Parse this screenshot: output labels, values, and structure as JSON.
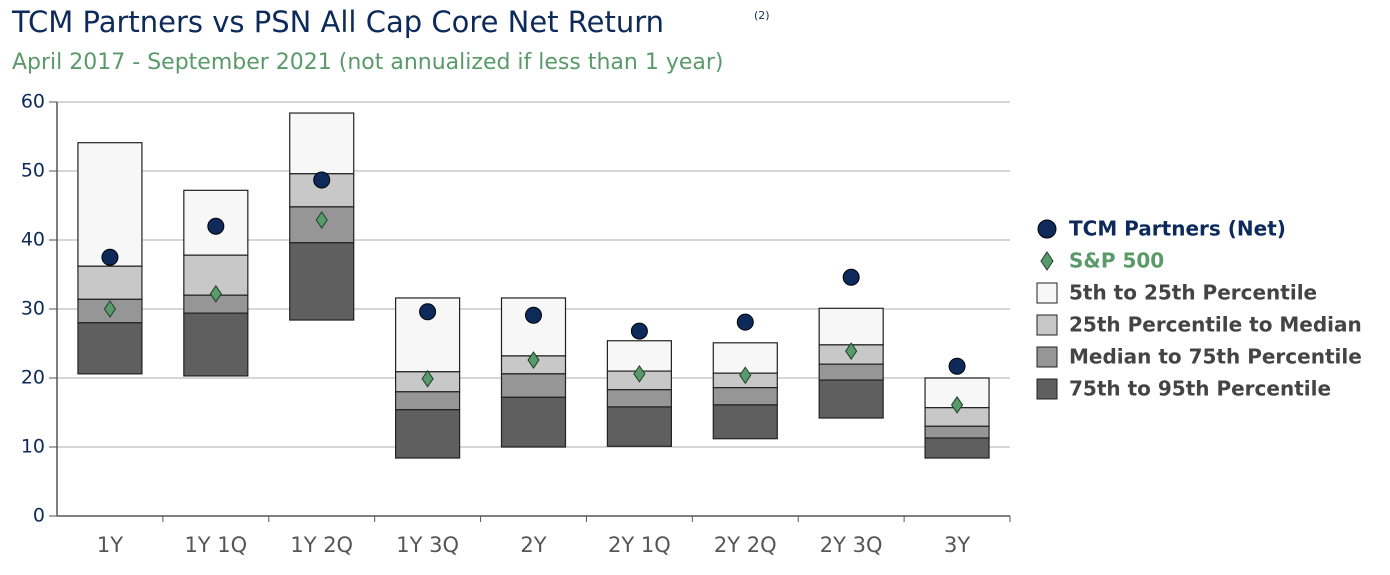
{
  "chart_data": {
    "type": "floating-box",
    "title": "TCM Partners vs PSN All Cap Core Net Return",
    "title_note": "(2)",
    "subtitle": "April 2017 - September 2021 (not annualized if less than 1 year)",
    "categories": [
      "1Y",
      "1Y 1Q",
      "1Y 2Q",
      "1Y 3Q",
      "2Y",
      "2Y 1Q",
      "2Y 2Q",
      "2Y 3Q",
      "3Y"
    ],
    "ylim": [
      0,
      60
    ],
    "yticks": [
      0,
      10,
      20,
      30,
      40,
      50,
      60
    ],
    "grid": true,
    "legend": "right",
    "series": [
      {
        "name": "TCM Partners (Net)",
        "color": "#0d2a5a",
        "marker": "circle",
        "values": [
          37.5,
          42.0,
          48.7,
          29.6,
          29.1,
          26.8,
          28.1,
          34.6,
          21.7
        ]
      },
      {
        "name": "S&P 500",
        "color": "#5a9a6a",
        "marker": "diamond",
        "values": [
          30.0,
          32.2,
          42.9,
          19.9,
          22.6,
          20.6,
          20.4,
          23.9,
          16.1
        ]
      }
    ],
    "bands": [
      {
        "name": "5th to 25th Percentile",
        "color": "#f7f7f7",
        "low": [
          36.2,
          37.8,
          49.6,
          20.9,
          23.2,
          21.0,
          20.7,
          24.8,
          15.7
        ],
        "high": [
          54.1,
          47.2,
          58.4,
          31.6,
          31.6,
          25.4,
          25.1,
          30.1,
          20.0
        ]
      },
      {
        "name": "25th Percentile to Median",
        "color": "#c8c8c8",
        "low": [
          31.4,
          32.0,
          44.8,
          18.0,
          20.6,
          18.3,
          18.6,
          22.0,
          13.0
        ],
        "high": [
          36.2,
          37.8,
          49.6,
          20.9,
          23.2,
          21.0,
          20.7,
          24.8,
          15.7
        ]
      },
      {
        "name": "Median to 75th Percentile",
        "color": "#969696",
        "low": [
          28.0,
          29.4,
          39.6,
          15.4,
          17.2,
          15.8,
          16.1,
          19.7,
          11.3
        ],
        "high": [
          31.4,
          32.0,
          44.8,
          18.0,
          20.6,
          18.3,
          18.6,
          22.0,
          13.0
        ]
      },
      {
        "name": "75th to 95th Percentile",
        "color": "#5f5f5f",
        "low": [
          20.6,
          20.3,
          28.4,
          8.4,
          10.0,
          10.1,
          11.2,
          14.2,
          8.4
        ],
        "high": [
          28.0,
          29.4,
          39.6,
          15.4,
          17.2,
          15.8,
          16.1,
          19.7,
          11.3
        ]
      }
    ]
  }
}
